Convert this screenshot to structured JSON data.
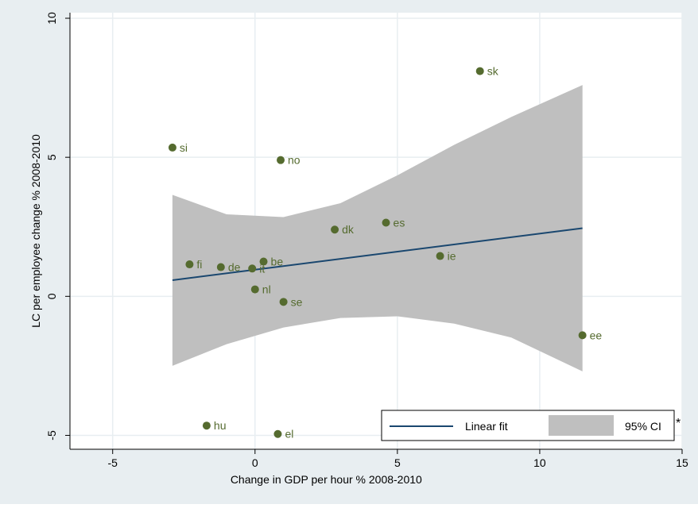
{
  "chart_data": {
    "type": "scatter",
    "xlabel": "Change in GDP per hour % 2008-2010",
    "ylabel": "LC per employee change % 2008-2010",
    "xlim": [
      -6.5,
      15
    ],
    "ylim": [
      -5.5,
      10.2
    ],
    "xticks": [
      -5,
      0,
      5,
      10,
      15
    ],
    "yticks": [
      -5,
      0,
      5,
      10
    ],
    "grid": true,
    "legend_position": "bottom-right",
    "colors": {
      "outer_background": "#e8eef1",
      "plot_background": "#ffffff",
      "gridline": "#e8eef1",
      "points": "#556b2f",
      "point_labels": "#556b2f",
      "fit_line": "#1a476f",
      "ci_band": "#bfbfbf",
      "axis": "#000000"
    },
    "points": [
      {
        "label": "sk",
        "x": 7.9,
        "y": 8.1
      },
      {
        "label": "si",
        "x": -2.9,
        "y": 5.35
      },
      {
        "label": "no",
        "x": 0.9,
        "y": 4.9
      },
      {
        "label": "dk",
        "x": 2.8,
        "y": 2.4
      },
      {
        "label": "es",
        "x": 4.6,
        "y": 2.65
      },
      {
        "label": "ie",
        "x": 6.5,
        "y": 1.45
      },
      {
        "label": "fi",
        "x": -2.3,
        "y": 1.15
      },
      {
        "label": "de",
        "x": -1.2,
        "y": 1.05
      },
      {
        "label": "it",
        "x": -0.1,
        "y": 1.0
      },
      {
        "label": "be",
        "x": 0.3,
        "y": 1.25
      },
      {
        "label": "nl",
        "x": 0.0,
        "y": 0.25
      },
      {
        "label": "se",
        "x": 1.0,
        "y": -0.2
      },
      {
        "label": "ee",
        "x": 11.5,
        "y": -1.4
      },
      {
        "label": "hu",
        "x": -1.7,
        "y": -4.65
      },
      {
        "label": "el",
        "x": 0.8,
        "y": -4.95
      }
    ],
    "linear_fit": {
      "x_start": -2.9,
      "x_end": 11.5,
      "y_start": 0.58,
      "y_end": 2.45
    },
    "ci_band": {
      "x": [
        -2.9,
        -1,
        1,
        3,
        5,
        7,
        9,
        11.5
      ],
      "upper": [
        3.65,
        2.95,
        2.85,
        3.35,
        4.35,
        5.45,
        6.45,
        7.6
      ],
      "lower": [
        -2.5,
        -1.72,
        -1.12,
        -0.78,
        -0.72,
        -0.98,
        -1.48,
        -2.7
      ]
    },
    "legend": [
      {
        "type": "line",
        "label": "Linear fit"
      },
      {
        "type": "area",
        "label": "95% CI"
      }
    ],
    "annotation": "*"
  }
}
